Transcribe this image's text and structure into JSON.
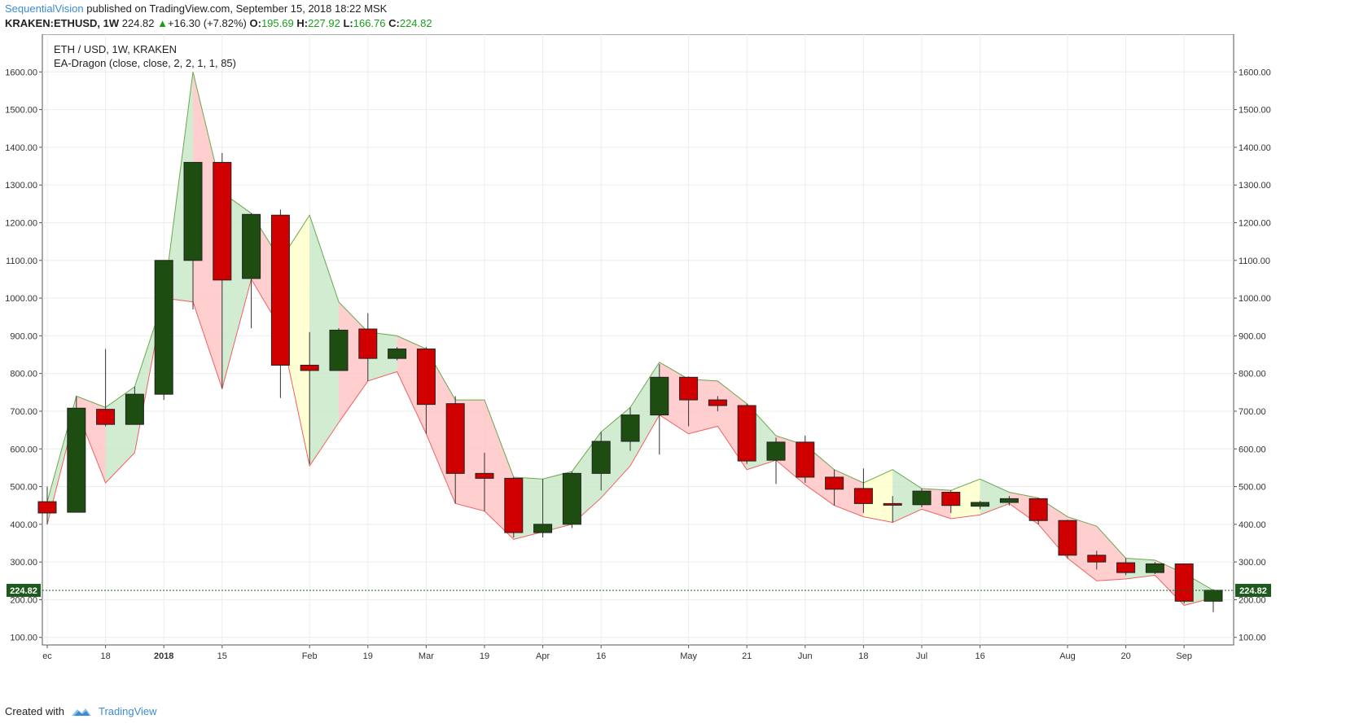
{
  "header": {
    "author": "SequentialVision",
    "published": "published on TradingView.com, September 15, 2018 18:22 MSK",
    "symbol": "KRAKEN:ETHUSD, 1W",
    "last": "224.82",
    "arrow": "▲",
    "change": "+16.30 (+7.82%)",
    "o_label": "O:",
    "o_val": "195.69",
    "h_label": "H:",
    "h_val": "227.92",
    "l_label": "L:",
    "l_val": "166.76",
    "c_label": "C:",
    "c_val": "224.82"
  },
  "legend": {
    "title": "ETH / USD, 1W, KRAKEN",
    "indicator": "EA-Dragon (close, close, 2, 2, 1, 1, 85)"
  },
  "footer": {
    "created_with": "Created with",
    "brand": "TradingView"
  },
  "colors": {
    "up": "#1e4d12",
    "down": "#d10000",
    "upper_line": "#6aa84f",
    "lower_line": "#f06060",
    "fill_up": "#c9e9c9",
    "fill_down": "#ffc6c6",
    "fill_neutral": "#ffffcc",
    "last_line": "#1e5a1e",
    "brand_blue": "#3b8bd6"
  },
  "chart_data": {
    "type": "candlestick",
    "ylim": [
      80,
      1700
    ],
    "y_ticks": [
      "100.00",
      "200.00",
      "300.00",
      "400.00",
      "500.00",
      "600.00",
      "700.00",
      "800.00",
      "900.00",
      "1000.00",
      "1100.00",
      "1200.00",
      "1300.00",
      "1400.00",
      "1500.00",
      "1600.00"
    ],
    "x_labels": [
      {
        "label": "ec",
        "i": 0
      },
      {
        "label": "18",
        "i": 1
      },
      {
        "label": "2018",
        "i": 2
      },
      {
        "label": "15",
        "i": 3
      },
      {
        "label": "Feb",
        "i": 4.5
      },
      {
        "label": "19",
        "i": 5.5
      },
      {
        "label": "Mar",
        "i": 6.5
      },
      {
        "label": "19",
        "i": 7.5
      },
      {
        "label": "Apr",
        "i": 8.5
      },
      {
        "label": "16",
        "i": 9.5
      },
      {
        "label": "May",
        "i": 11
      },
      {
        "label": "21",
        "i": 12
      },
      {
        "label": "Jun",
        "i": 13
      },
      {
        "label": "18",
        "i": 14
      },
      {
        "label": "Jul",
        "i": 15
      },
      {
        "label": "16",
        "i": 16
      },
      {
        "label": "Aug",
        "i": 17.5
      },
      {
        "label": "20",
        "i": 18.5
      },
      {
        "label": "Sep",
        "i": 19.5
      }
    ],
    "label_anchors": [
      {
        "label": "ec",
        "bar": 0
      },
      {
        "label": "18",
        "bar": 2
      },
      {
        "label": "2018",
        "bar": 4
      },
      {
        "label": "15",
        "bar": 6
      },
      {
        "label": "Feb",
        "bar": 9
      },
      {
        "label": "19",
        "bar": 11
      },
      {
        "label": "Mar",
        "bar": 13
      },
      {
        "label": "19",
        "bar": 15
      },
      {
        "label": "Apr",
        "bar": 17
      },
      {
        "label": "16",
        "bar": 19
      },
      {
        "label": "May",
        "bar": 22
      },
      {
        "label": "21",
        "bar": 24
      },
      {
        "label": "Jun",
        "bar": 26
      },
      {
        "label": "18",
        "bar": 28
      },
      {
        "label": "Jul",
        "bar": 30
      },
      {
        "label": "16",
        "bar": 32
      },
      {
        "label": "Aug",
        "bar": 35
      },
      {
        "label": "20",
        "bar": 37
      },
      {
        "label": "Sep",
        "bar": 39
      }
    ],
    "candles": [
      {
        "o": 460,
        "h": 500,
        "l": 400,
        "c": 430
      },
      {
        "o": 432,
        "h": 740,
        "l": 432,
        "c": 708
      },
      {
        "o": 705,
        "h": 865,
        "l": 660,
        "c": 665
      },
      {
        "o": 665,
        "h": 765,
        "l": 665,
        "c": 745
      },
      {
        "o": 745,
        "h": 1100,
        "l": 730,
        "c": 1100
      },
      {
        "o": 1100,
        "h": 1360,
        "l": 970,
        "c": 1360
      },
      {
        "o": 1360,
        "h": 1385,
        "l": 760,
        "c": 1048
      },
      {
        "o": 1052,
        "h": 1225,
        "l": 920,
        "c": 1222
      },
      {
        "o": 1220,
        "h": 1235,
        "l": 735,
        "c": 822
      },
      {
        "o": 822,
        "h": 910,
        "l": 560,
        "c": 808
      },
      {
        "o": 808,
        "h": 920,
        "l": 808,
        "c": 915
      },
      {
        "o": 918,
        "h": 960,
        "l": 780,
        "c": 840
      },
      {
        "o": 840,
        "h": 870,
        "l": 835,
        "c": 865
      },
      {
        "o": 865,
        "h": 870,
        "l": 640,
        "c": 718
      },
      {
        "o": 720,
        "h": 740,
        "l": 455,
        "c": 535
      },
      {
        "o": 535,
        "h": 590,
        "l": 435,
        "c": 522
      },
      {
        "o": 522,
        "h": 525,
        "l": 365,
        "c": 378
      },
      {
        "o": 378,
        "h": 520,
        "l": 365,
        "c": 400
      },
      {
        "o": 400,
        "h": 540,
        "l": 390,
        "c": 535
      },
      {
        "o": 535,
        "h": 645,
        "l": 490,
        "c": 620
      },
      {
        "o": 620,
        "h": 710,
        "l": 595,
        "c": 690
      },
      {
        "o": 690,
        "h": 825,
        "l": 585,
        "c": 790
      },
      {
        "o": 790,
        "h": 792,
        "l": 660,
        "c": 730
      },
      {
        "o": 730,
        "h": 740,
        "l": 700,
        "c": 715
      },
      {
        "o": 715,
        "h": 720,
        "l": 560,
        "c": 568
      },
      {
        "o": 570,
        "h": 630,
        "l": 507,
        "c": 618
      },
      {
        "o": 618,
        "h": 635,
        "l": 510,
        "c": 525
      },
      {
        "o": 525,
        "h": 545,
        "l": 450,
        "c": 493
      },
      {
        "o": 495,
        "h": 548,
        "l": 430,
        "c": 455
      },
      {
        "o": 455,
        "h": 475,
        "l": 405,
        "c": 452
      },
      {
        "o": 452,
        "h": 495,
        "l": 445,
        "c": 488
      },
      {
        "o": 485,
        "h": 490,
        "l": 430,
        "c": 450
      },
      {
        "o": 448,
        "h": 462,
        "l": 440,
        "c": 458
      },
      {
        "o": 458,
        "h": 475,
        "l": 450,
        "c": 468
      },
      {
        "o": 468,
        "h": 470,
        "l": 400,
        "c": 410
      },
      {
        "o": 410,
        "h": 412,
        "l": 310,
        "c": 318
      },
      {
        "o": 318,
        "h": 330,
        "l": 280,
        "c": 300
      },
      {
        "o": 298,
        "h": 310,
        "l": 265,
        "c": 272
      },
      {
        "o": 272,
        "h": 300,
        "l": 268,
        "c": 295
      },
      {
        "o": 295,
        "h": 295,
        "l": 190,
        "c": 196
      },
      {
        "o": 196,
        "h": 228,
        "l": 167,
        "c": 225
      }
    ],
    "dragon_upper": [
      460,
      740,
      710,
      765,
      1000,
      1600,
      1280,
      1225,
      1100,
      1220,
      990,
      910,
      900,
      865,
      730,
      730,
      525,
      520,
      540,
      645,
      710,
      830,
      785,
      780,
      720,
      635,
      610,
      545,
      510,
      545,
      495,
      490,
      520,
      485,
      470,
      420,
      395,
      310,
      305,
      270,
      225
    ],
    "dragon_lower": [
      400,
      705,
      510,
      590,
      1000,
      990,
      760,
      1050,
      920,
      555,
      670,
      780,
      805,
      640,
      455,
      435,
      360,
      380,
      400,
      470,
      555,
      690,
      640,
      660,
      545,
      570,
      505,
      450,
      420,
      405,
      440,
      415,
      425,
      455,
      400,
      310,
      250,
      255,
      265,
      185,
      205
    ],
    "last_value": 224.82,
    "last_label": "224.82"
  }
}
